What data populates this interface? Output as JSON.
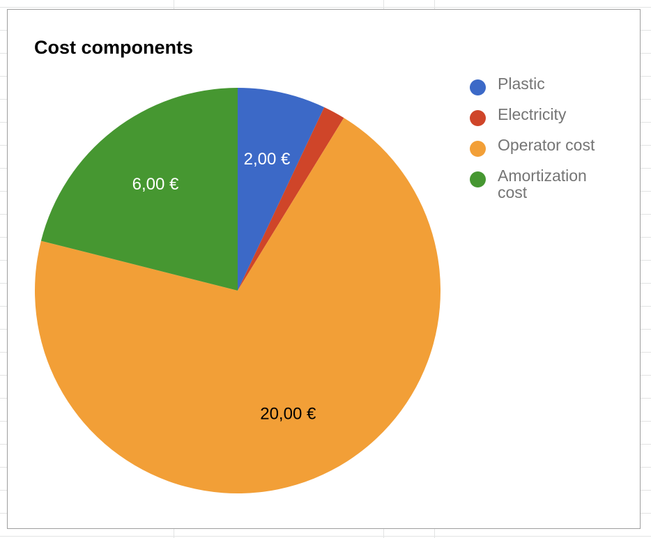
{
  "chart_data": {
    "type": "pie",
    "title": "Cost components",
    "legend_position": "right",
    "slices": [
      {
        "name": "Plastic",
        "value": 2.0,
        "label": "2,00 €",
        "color": "#3c69c7",
        "label_color": "#ffffff"
      },
      {
        "name": "Electricity",
        "value": 0.5,
        "label": "",
        "color": "#cf4529",
        "label_color": "#ffffff"
      },
      {
        "name": "Operator cost",
        "value": 20.0,
        "label": "20,00 €",
        "color": "#f29f37",
        "label_color": "#000000"
      },
      {
        "name": "Amortization cost",
        "value": 6.0,
        "label": "6,00 €",
        "color": "#469731",
        "label_color": "#ffffff"
      }
    ]
  }
}
